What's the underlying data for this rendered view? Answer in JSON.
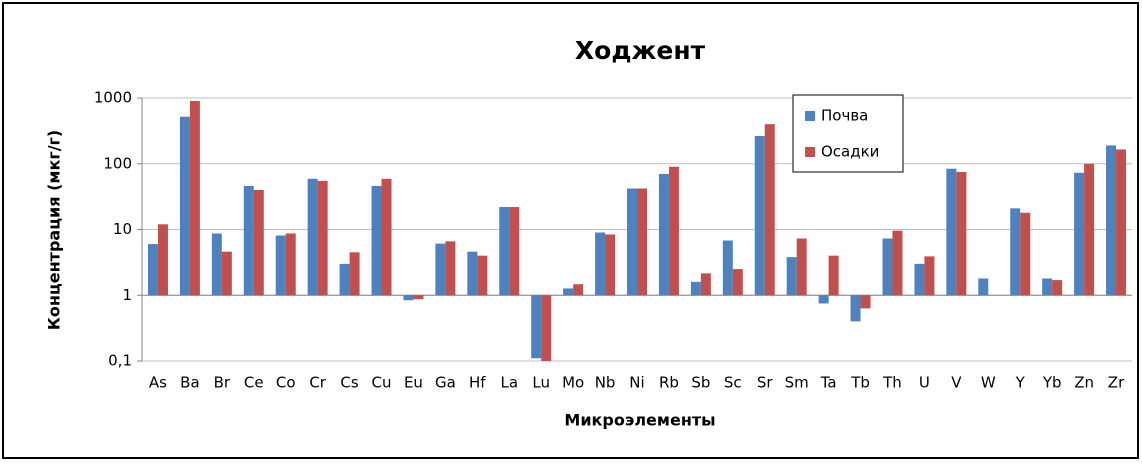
{
  "chart_data": {
    "type": "bar",
    "title": "Ходжент",
    "x_label": "Микроэлементы",
    "y_label": "Концентрация (мкг/г)",
    "categories": [
      "As",
      "Ba",
      "Br",
      "Ce",
      "Co",
      "Cr",
      "Cs",
      "Cu",
      "Eu",
      "Ga",
      "Hf",
      "La",
      "Lu",
      "Mo",
      "Nb",
      "Ni",
      "Rb",
      "Sb",
      "Sc",
      "Sr",
      "Sm",
      "Ta",
      "Tb",
      "Th",
      "U",
      "V",
      "W",
      "Y",
      "Yb",
      "Zn",
      "Zr"
    ],
    "series": [
      {
        "name": "Почва",
        "color": "#4f81bd",
        "values": [
          6,
          520,
          8.7,
          46,
          8.1,
          59,
          3,
          46,
          0.84,
          6.1,
          4.6,
          22,
          0.11,
          1.27,
          9,
          42,
          70,
          1.6,
          6.8,
          265,
          3.8,
          0.75,
          0.4,
          7.3,
          3,
          84,
          1.8,
          21,
          1.8,
          73,
          190
        ]
      },
      {
        "name": "Осадки",
        "color": "#c0504d",
        "values": [
          12,
          900,
          4.6,
          40,
          8.7,
          55,
          4.5,
          59,
          0.87,
          6.6,
          4,
          22,
          0.1,
          1.47,
          8.4,
          42,
          90,
          2.15,
          2.5,
          400,
          7.3,
          4,
          0.63,
          9.6,
          3.9,
          75,
          null,
          18,
          1.7,
          100,
          165
        ]
      }
    ],
    "ylim": [
      0.1,
      1000
    ],
    "log_scale": true,
    "grid": true,
    "yticks": [
      {
        "value": 0.1,
        "label": "0,1"
      },
      1,
      10,
      100,
      1000
    ],
    "legend_position": "upper-right"
  }
}
